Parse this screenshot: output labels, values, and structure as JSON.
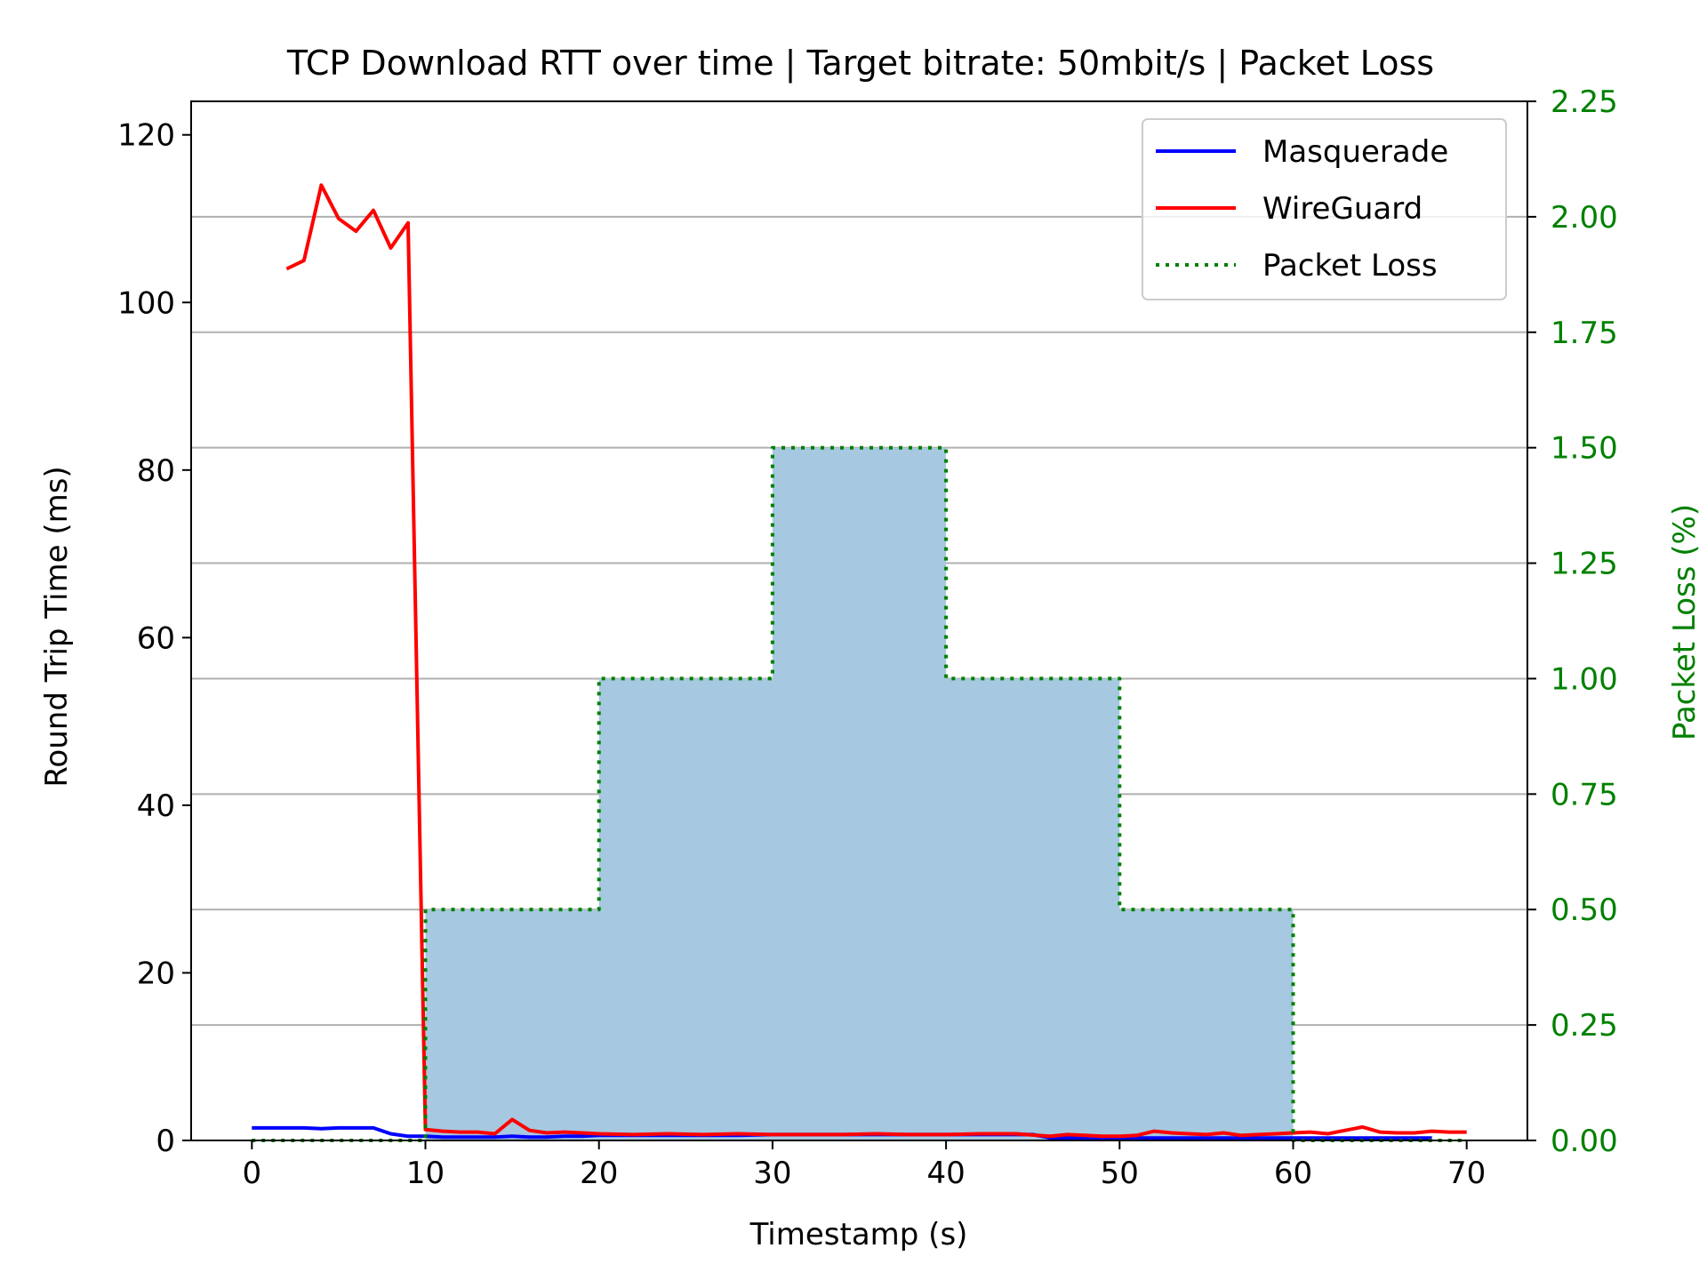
{
  "chart_data": {
    "type": "line",
    "title": "TCP Download RTT over time | Target bitrate: 50mbit/s | Packet Loss",
    "xlabel": "Timestamp (s)",
    "ylabel": "Round Trip Time (ms)",
    "y2label": "Packet Loss (%)",
    "xlim": [
      -3.5,
      73.5
    ],
    "ylim": [
      0,
      124
    ],
    "y2lim": [
      0,
      2.25
    ],
    "xticks": [
      0,
      10,
      20,
      30,
      40,
      50,
      60,
      70
    ],
    "yticks": [
      0,
      20,
      40,
      60,
      80,
      100,
      120
    ],
    "y2ticks": [
      0,
      0.25,
      0.5,
      0.75,
      1.0,
      1.25,
      1.5,
      1.75,
      2.0,
      2.25
    ],
    "y2tick_labels": [
      "0.00",
      "0.25",
      "0.50",
      "0.75",
      "1.00",
      "1.25",
      "1.50",
      "1.75",
      "2.00",
      "2.25"
    ],
    "grid": "y2-major",
    "legend_position": "upper right",
    "colors": {
      "masquerade": "#0000ff",
      "wireguard": "#ff0000",
      "packet_loss": "#008000",
      "fill": "#a6c8e0",
      "grid": "#b0b0b0",
      "overlap": "#8b3a50"
    },
    "series": [
      {
        "name": "Masquerade",
        "axis": "left",
        "style": "solid",
        "x": [
          0,
          1,
          2,
          3,
          4,
          5,
          6,
          7,
          8,
          9,
          10,
          11,
          12,
          13,
          14,
          15,
          16,
          17,
          18,
          19,
          20,
          22,
          24,
          26,
          28,
          30,
          32,
          34,
          36,
          38,
          40,
          42,
          44,
          45,
          46,
          48,
          50,
          52,
          54,
          56,
          58,
          60,
          62,
          64,
          66,
          68
        ],
        "values": [
          1.5,
          1.5,
          1.5,
          1.5,
          1.4,
          1.5,
          1.5,
          1.5,
          0.8,
          0.5,
          0.5,
          0.4,
          0.4,
          0.4,
          0.4,
          0.5,
          0.4,
          0.4,
          0.5,
          0.5,
          0.6,
          0.6,
          0.6,
          0.6,
          0.6,
          0.7,
          0.7,
          0.7,
          0.7,
          0.7,
          0.7,
          0.7,
          0.7,
          0.7,
          0.3,
          0.3,
          0.3,
          0.3,
          0.3,
          0.3,
          0.3,
          0.3,
          0.3,
          0.3,
          0.3,
          0.3
        ]
      },
      {
        "name": "WireGuard",
        "axis": "left",
        "style": "solid",
        "x": [
          2,
          3,
          4,
          5,
          6,
          7,
          8,
          9,
          10,
          11,
          12,
          13,
          14,
          15,
          16,
          17,
          18,
          19,
          20,
          22,
          24,
          26,
          28,
          30,
          32,
          34,
          36,
          38,
          40,
          42,
          44,
          46,
          47,
          48,
          49,
          50,
          51,
          52,
          53,
          54,
          55,
          56,
          57,
          58,
          59,
          60,
          61,
          62,
          63,
          64,
          65,
          66,
          67,
          68,
          69,
          70
        ],
        "values": [
          104,
          105,
          114,
          110,
          108.5,
          111,
          106.5,
          109.5,
          1.3,
          1.1,
          1.0,
          1.0,
          0.8,
          2.5,
          1.2,
          0.9,
          1.0,
          0.9,
          0.8,
          0.7,
          0.8,
          0.7,
          0.8,
          0.7,
          0.7,
          0.7,
          0.8,
          0.7,
          0.7,
          0.8,
          0.8,
          0.5,
          0.7,
          0.6,
          0.5,
          0.5,
          0.6,
          1.1,
          0.9,
          0.8,
          0.7,
          0.9,
          0.6,
          0.7,
          0.8,
          0.9,
          1.0,
          0.8,
          1.2,
          1.6,
          1.0,
          0.9,
          0.9,
          1.1,
          1.0,
          1.0
        ]
      },
      {
        "name": "Packet Loss",
        "axis": "right",
        "style": "dotted",
        "x": [
          0,
          10,
          10,
          20,
          20,
          30,
          30,
          40,
          40,
          50,
          50,
          60,
          60,
          70
        ],
        "values": [
          0,
          0,
          0.5,
          0.5,
          1.0,
          1.0,
          1.5,
          1.5,
          1.0,
          1.0,
          0.5,
          0.5,
          0,
          0
        ]
      }
    ],
    "legend": [
      "Masquerade",
      "WireGuard",
      "Packet Loss"
    ]
  }
}
